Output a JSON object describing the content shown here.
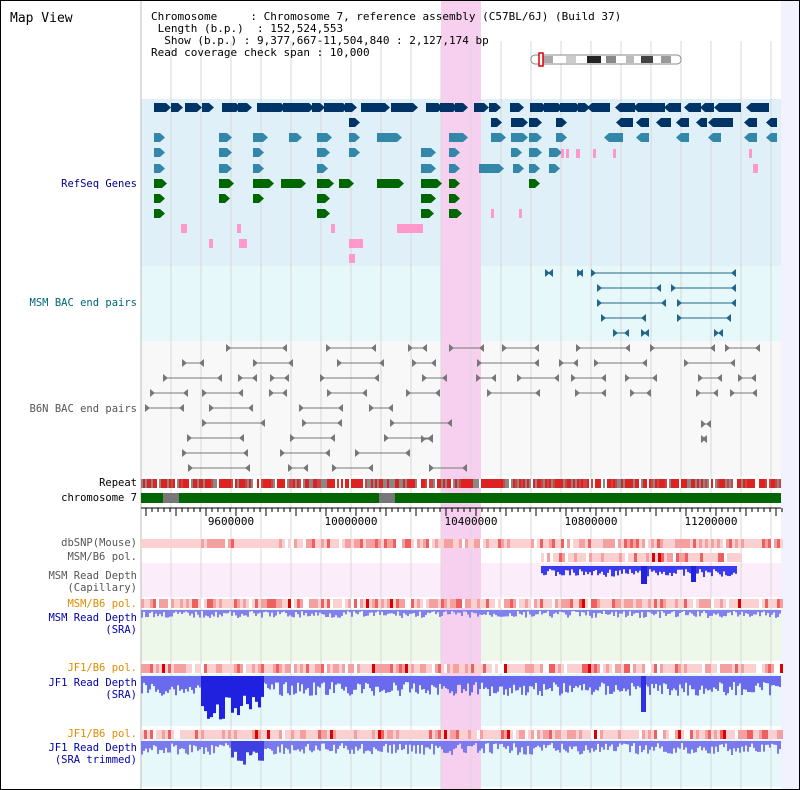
{
  "title": "Map View",
  "info": {
    "chromosome_label": "Chromosome",
    "chromosome_value": "Chromosome 7, reference assembly (C57BL/6J) (Build 37)",
    "length_label": "Length (b.p.)",
    "length_value": "152,524,553",
    "show_label": "Show (b.p.)",
    "show_value": "9,377,667-11,504,840 : 2,127,174 bp",
    "span_label": "Read coverage check span",
    "span_value": "10,000"
  },
  "tracks": {
    "refseq": "RefSeq Genes",
    "msm_bac": "MSM BAC end pairs",
    "b6n_bac": "B6N BAC end pairs",
    "repeat": "Repeat",
    "chromosome": "chromosome 7",
    "dbsnp": "dbSNP(Mouse)",
    "msm_b6_pol": "MSM/B6 pol.",
    "msm_cap_1": "MSM Read Depth",
    "msm_cap_2": "(Capillary)",
    "msm_b6_pol_2": "MSM/B6 pol.",
    "msm_sra_1": "MSM Read Depth",
    "msm_sra_2": "(SRA)",
    "jf1_b6_pol": "JF1/B6 pol.",
    "jf1_sra_1": "JF1 Read Depth",
    "jf1_sra_2": "(SRA)",
    "jf1_b6_pol_2": "JF1/B6 pol.",
    "jf1_trim_1": "JF1 Read Depth",
    "jf1_trim_2": "(SRA trimmed)"
  },
  "axis": {
    "ticks": [
      "9600000",
      "10000000",
      "10400000",
      "10800000",
      "11200000"
    ]
  },
  "colors": {
    "gene_navy": "#003366",
    "gene_steel": "#3388aa",
    "gene_green": "#006600",
    "gene_pink": "#ff99cc",
    "highlight": "#f7d0ef",
    "repeat_red": "#dd2222",
    "chrom_green": "#006600",
    "depth_blue": "#3333ee"
  }
}
